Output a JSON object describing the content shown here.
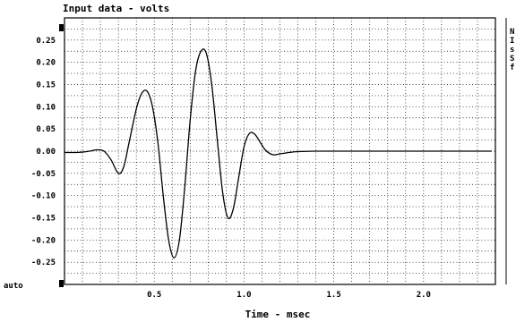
{
  "chart_data": {
    "type": "line",
    "title": "Input data - volts",
    "xlabel": "Time - msec",
    "ylabel": "",
    "xlim": [
      0,
      2.4
    ],
    "ylim": [
      -0.3,
      0.3
    ],
    "grid": true,
    "x_ticks": [
      0.5,
      1.0,
      1.5,
      2.0
    ],
    "x_tick_labels": [
      "0.5",
      "1.0",
      "1.5",
      "2.0"
    ],
    "y_ticks": [
      0.25,
      0.2,
      0.15,
      0.1,
      0.05,
      0.0,
      -0.05,
      -0.1,
      -0.15,
      -0.2,
      -0.25
    ],
    "y_tick_labels": [
      "0.25",
      "0.20",
      "0.15",
      "0.10",
      "0.05",
      "0.00",
      "-0.05",
      "-0.10",
      "-0.15",
      "-0.20",
      "-0.25"
    ],
    "y_scale_mode_label": "auto",
    "side_panel_chars": [
      "N",
      "I",
      "s",
      "S",
      "f"
    ],
    "series": [
      {
        "x": [
          0.0,
          0.06,
          0.1,
          0.14,
          0.18,
          0.22,
          0.26,
          0.3,
          0.33,
          0.36,
          0.4,
          0.43,
          0.46,
          0.49,
          0.52,
          0.55,
          0.58,
          0.61,
          0.64,
          0.67,
          0.7,
          0.73,
          0.76,
          0.79,
          0.82,
          0.85,
          0.88,
          0.91,
          0.94,
          0.97,
          1.0,
          1.03,
          1.06,
          1.09,
          1.12,
          1.16,
          1.2,
          1.25,
          1.3,
          1.4,
          1.6,
          1.8,
          2.0,
          2.2,
          2.38
        ],
        "y": [
          -0.003,
          -0.003,
          -0.002,
          0.0,
          0.003,
          0.0,
          -0.02,
          -0.05,
          -0.035,
          0.02,
          0.095,
          0.13,
          0.135,
          0.1,
          0.02,
          -0.1,
          -0.2,
          -0.24,
          -0.2,
          -0.08,
          0.07,
          0.18,
          0.225,
          0.22,
          0.15,
          0.03,
          -0.09,
          -0.15,
          -0.13,
          -0.06,
          0.01,
          0.04,
          0.038,
          0.02,
          0.002,
          -0.008,
          -0.006,
          -0.003,
          -0.001,
          0.0,
          0.0,
          0.0,
          0.0,
          0.0,
          0.0
        ]
      }
    ]
  }
}
